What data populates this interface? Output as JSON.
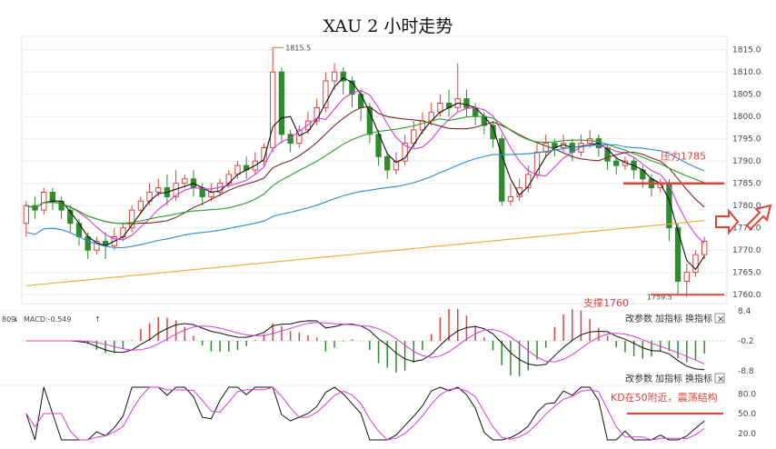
{
  "title": "XAU 2 小时走势",
  "chart_data": [
    {
      "type": "candlestick",
      "title": "XAU 2 小时走势",
      "ylim": [
        1758,
        1818
      ],
      "y_ticks": [
        1815,
        1810,
        1805,
        1800,
        1795,
        1790,
        1785,
        1780,
        1775,
        1770,
        1765,
        1760
      ],
      "high_marker": "1815.5",
      "low_marker": "1759.5",
      "annotations": [
        "压力1785",
        "支撑1760"
      ],
      "levels": {
        "resistance": 1785,
        "support": 1760
      },
      "candles": [
        [
          1776,
          1780,
          1773,
          1781
        ],
        [
          1780,
          1779,
          1777,
          1782
        ],
        [
          1779,
          1783,
          1778,
          1784
        ],
        [
          1783,
          1781,
          1779,
          1784
        ],
        [
          1781,
          1779,
          1777,
          1782
        ],
        [
          1779,
          1776,
          1774,
          1780
        ],
        [
          1776,
          1773,
          1771,
          1777
        ],
        [
          1773,
          1770,
          1768,
          1774
        ],
        [
          1770,
          1772,
          1769,
          1773
        ],
        [
          1772,
          1771,
          1768,
          1774
        ],
        [
          1771,
          1773,
          1770,
          1775
        ],
        [
          1773,
          1775,
          1772,
          1776
        ],
        [
          1775,
          1779,
          1774,
          1780
        ],
        [
          1779,
          1781,
          1778,
          1782
        ],
        [
          1781,
          1783,
          1780,
          1785
        ],
        [
          1783,
          1784,
          1782,
          1786
        ],
        [
          1784,
          1782,
          1780,
          1787
        ],
        [
          1782,
          1785,
          1781,
          1788
        ],
        [
          1785,
          1786,
          1784,
          1787
        ],
        [
          1786,
          1784,
          1782,
          1788
        ],
        [
          1784,
          1782,
          1780,
          1785
        ],
        [
          1782,
          1783,
          1781,
          1785
        ],
        [
          1783,
          1785,
          1782,
          1786
        ],
        [
          1785,
          1787,
          1784,
          1788
        ],
        [
          1787,
          1789,
          1786,
          1790
        ],
        [
          1789,
          1788,
          1786,
          1791
        ],
        [
          1788,
          1790,
          1787,
          1792
        ],
        [
          1790,
          1793,
          1789,
          1794
        ],
        [
          1793,
          1810,
          1792,
          1815.5
        ],
        [
          1810,
          1796,
          1794,
          1811
        ],
        [
          1796,
          1794,
          1792,
          1797
        ],
        [
          1794,
          1797,
          1793,
          1798
        ],
        [
          1797,
          1799,
          1796,
          1801
        ],
        [
          1799,
          1802,
          1798,
          1804
        ],
        [
          1802,
          1808,
          1801,
          1810
        ],
        [
          1808,
          1810,
          1806,
          1812
        ],
        [
          1810,
          1808,
          1805,
          1811
        ],
        [
          1808,
          1805,
          1802,
          1809
        ],
        [
          1805,
          1802,
          1799,
          1806
        ],
        [
          1802,
          1796,
          1794,
          1803
        ],
        [
          1796,
          1791,
          1789,
          1797
        ],
        [
          1791,
          1788,
          1786,
          1792
        ],
        [
          1788,
          1790,
          1787,
          1792
        ],
        [
          1790,
          1794,
          1789,
          1796
        ],
        [
          1794,
          1797,
          1793,
          1799
        ],
        [
          1797,
          1799,
          1796,
          1801
        ],
        [
          1799,
          1801,
          1798,
          1803
        ],
        [
          1801,
          1803,
          1800,
          1805
        ],
        [
          1803,
          1802,
          1800,
          1806
        ],
        [
          1802,
          1804,
          1801,
          1812
        ],
        [
          1804,
          1802,
          1800,
          1806
        ],
        [
          1802,
          1800,
          1798,
          1803
        ],
        [
          1800,
          1798,
          1796,
          1801
        ],
        [
          1798,
          1795,
          1793,
          1799
        ],
        [
          1795,
          1781,
          1780,
          1796
        ],
        [
          1781,
          1782,
          1780,
          1785
        ],
        [
          1782,
          1784,
          1781,
          1786
        ],
        [
          1784,
          1787,
          1783,
          1789
        ],
        [
          1787,
          1792,
          1786,
          1794
        ],
        [
          1792,
          1794,
          1791,
          1796
        ],
        [
          1794,
          1793,
          1791,
          1795
        ],
        [
          1793,
          1794,
          1792,
          1796
        ],
        [
          1794,
          1792,
          1790,
          1795
        ],
        [
          1792,
          1794,
          1791,
          1796
        ],
        [
          1794,
          1795,
          1793,
          1797
        ],
        [
          1795,
          1793,
          1791,
          1796
        ],
        [
          1793,
          1790,
          1788,
          1794
        ],
        [
          1790,
          1789,
          1787,
          1791
        ],
        [
          1789,
          1790,
          1788,
          1791
        ],
        [
          1790,
          1788,
          1786,
          1791
        ],
        [
          1788,
          1786,
          1784,
          1789
        ],
        [
          1786,
          1784,
          1782,
          1787
        ],
        [
          1784,
          1785,
          1783,
          1786
        ],
        [
          1785,
          1775,
          1772,
          1786
        ],
        [
          1775,
          1763,
          1760,
          1776
        ],
        [
          1763,
          1765,
          1759.5,
          1767
        ],
        [
          1765,
          1769,
          1764,
          1770
        ],
        [
          1769,
          1772,
          1768,
          1773
        ]
      ]
    },
    {
      "type": "line",
      "title": "MACD",
      "indicator_label": "MACD:-0.549",
      "prefix_value": "809",
      "y_ticks": [
        "8.4",
        "-0.2",
        "-8.8"
      ],
      "ylim": [
        -8.8,
        8.4
      ]
    },
    {
      "type": "line",
      "title": "KD",
      "y_ticks": [
        "80.0",
        "50.0",
        "20.0"
      ],
      "ylim": [
        10,
        90
      ],
      "annotation": "KD在50附近，震荡结构",
      "level": 50
    }
  ],
  "controls": {
    "items": [
      "改参数",
      "加指标",
      "换指标"
    ],
    "close": "×"
  },
  "colors": {
    "up": "#e0433a",
    "down": "#2e8b2e",
    "annotation": "#e0433a",
    "ma_fast": "#111111",
    "ma_mid": "#d63cd6",
    "ma_slow": "#7a2b2b",
    "ma_green": "#2f9e2f",
    "ma_blue": "#2b8ad6",
    "ma_orange": "#f0a830"
  }
}
